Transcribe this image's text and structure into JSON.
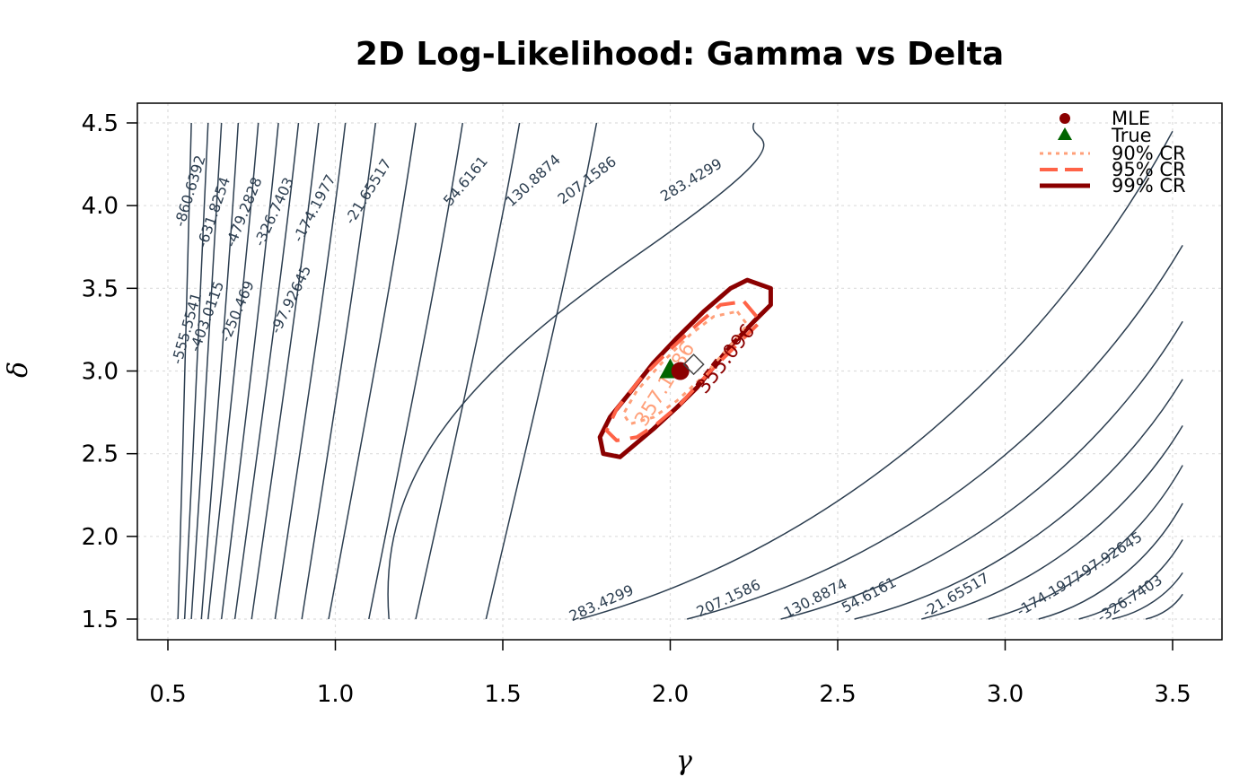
{
  "chart_data": {
    "type": "contour",
    "title": "2D Log-Likelihood: Gamma vs Delta",
    "xlabel": "γ",
    "ylabel": "δ",
    "xlim": [
      0.5,
      3.5
    ],
    "ylim": [
      1.5,
      4.5
    ],
    "x_ticks": [
      "0.5",
      "1.0",
      "1.5",
      "2.0",
      "2.5",
      "3.0",
      "3.5"
    ],
    "y_ticks": [
      "1.5",
      "2.0",
      "2.5",
      "3.0",
      "3.5",
      "4.0",
      "4.5"
    ],
    "grid": true,
    "legend_position": "top-right",
    "contour_levels": [
      -860.6392,
      -631.8254,
      -555.5541,
      -479.2828,
      -403.0115,
      -326.7403,
      -250.469,
      -174.1977,
      -97.92645,
      -21.65517,
      54.6161,
      130.8874,
      207.1586,
      283.4299
    ],
    "upper_left_labels": [
      "-860.6392",
      "-631.8254",
      "-555.5541",
      "-479.2828",
      "-403.0115",
      "-326.7403",
      "-250.469",
      "-174.1977",
      "-97.92645",
      "-21.65517",
      "54.6161",
      "130.8874",
      "207.1586",
      "283.4299"
    ],
    "lower_right_labels": [
      "283.4299",
      "207.1586",
      "130.8874",
      "54.6161",
      "-21.65517",
      "-174.1977",
      "-97.92645",
      "-326.7403"
    ],
    "region_labels": [
      "357.1586",
      "355.096"
    ],
    "mle": {
      "gamma": 2.03,
      "delta": 3.0
    },
    "true_value": {
      "gamma": 2.0,
      "delta": 3.0
    },
    "legend": [
      "MLE",
      "True",
      "90% CR",
      "95% CR",
      "99% CR"
    ],
    "colors": {
      "contour": "#2c3e50",
      "mle": "#8b0000",
      "true": "#006400",
      "cr90": "#ffa07a",
      "cr95": "#ff6347",
      "cr99": "#8b0000",
      "grid": "#dddddd"
    }
  }
}
